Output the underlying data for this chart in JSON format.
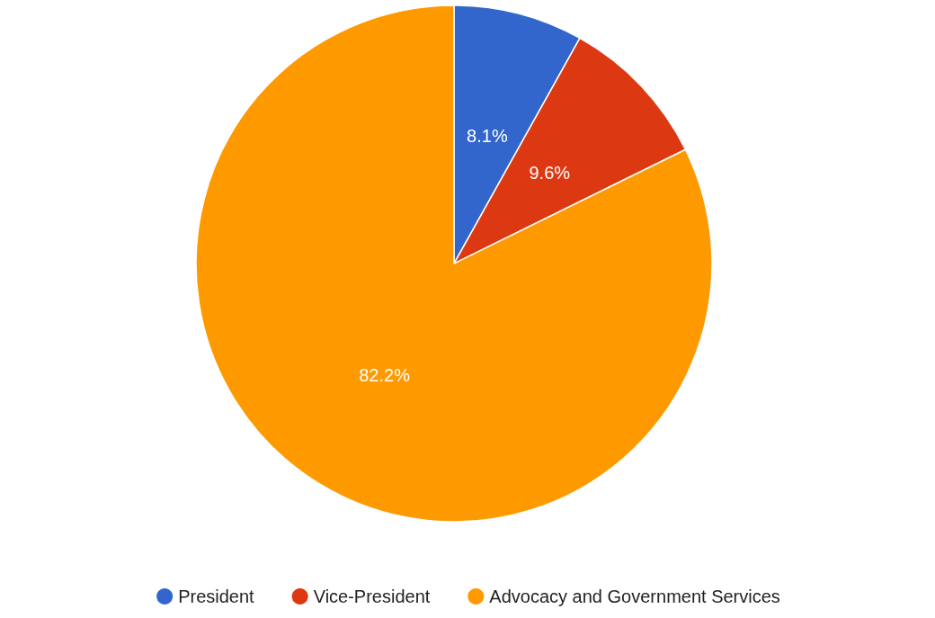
{
  "chart_data": {
    "type": "pie",
    "categories": [
      "President",
      "Vice-President",
      "Advocacy and Government Services"
    ],
    "values": [
      8.1,
      9.6,
      82.2
    ],
    "colors": [
      "#3366cc",
      "#dc3912",
      "#ff9900"
    ],
    "value_labels": [
      "8.1%",
      "9.6%",
      "82.2%"
    ],
    "legend": "bottom"
  }
}
